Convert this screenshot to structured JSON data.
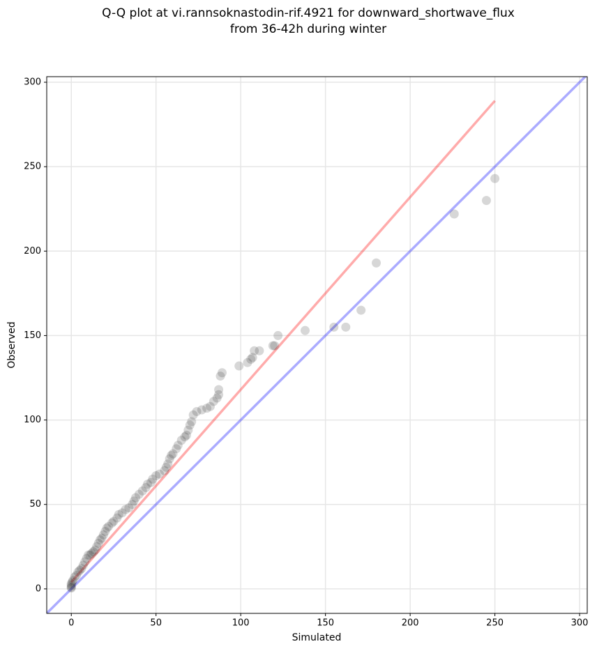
{
  "chart_data": {
    "type": "scatter",
    "title": [
      "Q-Q plot at vi.rannsoknastodin-rif.4921 for downward_shortwave_flux",
      "from 36-42h during winter"
    ],
    "x_label": "Simulated",
    "y_label": "Observed",
    "xlim": [
      -14.5,
      304.5
    ],
    "ylim": [
      -14.5,
      303.3
    ],
    "xticks": [
      0,
      50,
      100,
      150,
      200,
      250,
      300
    ],
    "yticks": [
      0,
      50,
      100,
      150,
      200,
      250,
      300
    ],
    "grid": true,
    "series": [
      {
        "type": "line",
        "color": "#0000ff",
        "alpha": 0.33,
        "x": [
          -14.5,
          304.5
        ],
        "values": [
          -14.5,
          304.5
        ]
      },
      {
        "type": "line",
        "color": "#ff0000",
        "alpha": 0.33,
        "x": [
          0,
          250
        ],
        "values": [
          4,
          289
        ]
      },
      {
        "type": "scatter",
        "color": "#222222",
        "alpha": 0.18,
        "x": [
          0,
          0,
          0,
          0,
          0.5,
          1,
          2,
          3,
          4,
          5,
          6,
          7,
          8,
          9,
          10,
          11,
          12,
          13,
          14,
          15,
          16,
          17,
          18,
          19,
          20,
          21,
          22,
          24,
          25,
          27,
          28,
          30,
          32,
          34,
          36,
          37,
          38,
          40,
          42,
          44,
          45,
          47,
          48,
          50,
          52,
          55,
          56,
          57,
          58,
          59,
          60,
          62,
          63,
          65,
          67,
          68,
          69,
          70,
          71,
          72,
          74,
          77,
          80,
          82,
          84,
          86,
          87,
          87,
          88,
          89,
          99,
          104,
          106,
          107,
          108,
          111,
          119,
          120,
          122,
          138,
          155,
          162,
          171,
          180,
          226,
          245,
          250
        ],
        "values": [
          0.5,
          1,
          2,
          3,
          4,
          5,
          7,
          8,
          10,
          11,
          12,
          14,
          16,
          18,
          20,
          20,
          21,
          22,
          23,
          25,
          27,
          29,
          30,
          32,
          34,
          36,
          37,
          39,
          40,
          42,
          44,
          45,
          47,
          48,
          50,
          52,
          54,
          56,
          58,
          60,
          62,
          63,
          65,
          67,
          68,
          70,
          72,
          74,
          77,
          79,
          80,
          83,
          85,
          88,
          90,
          91,
          94,
          97,
          99,
          103,
          105,
          106,
          107,
          108,
          111,
          113,
          115,
          118,
          126,
          128,
          132,
          134,
          136,
          137,
          141,
          141,
          144,
          144,
          150,
          153,
          155,
          155,
          165,
          193,
          222,
          230,
          243
        ]
      }
    ]
  }
}
